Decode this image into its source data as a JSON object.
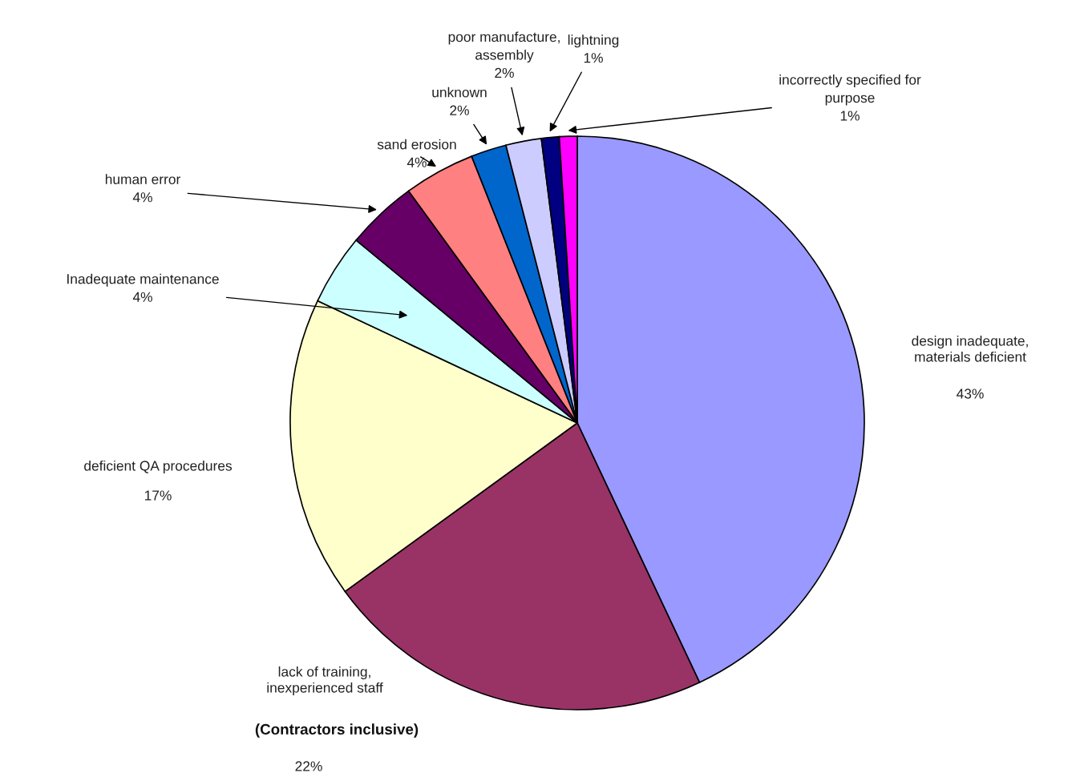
{
  "chart_data": {
    "type": "pie",
    "categories": [
      "design inadequate,\nmaterials deficient",
      "lack of training,\ninexperienced staff",
      "deficient QA procedures",
      "Inadequate maintenance",
      "human error",
      "sand erosion",
      "unknown",
      "poor manufacture,\nassembly",
      "lightning",
      "incorrectly specified for\npurpose"
    ],
    "values": [
      43,
      22,
      17,
      4,
      4,
      4,
      2,
      2,
      1,
      1
    ],
    "value_labels": [
      "43%",
      "22%",
      "17%",
      "4%",
      "4%",
      "4%",
      "2%",
      "2%",
      "1%",
      "1%"
    ],
    "colors": [
      "#9999ff",
      "#993366",
      "#ffffcc",
      "#ccffff",
      "#660066",
      "#ff8080",
      "#0066cc",
      "#ccccff",
      "#000080",
      "#ff00ff"
    ],
    "annotations": [
      "(Contractors inclusive)"
    ],
    "legend": false
  }
}
